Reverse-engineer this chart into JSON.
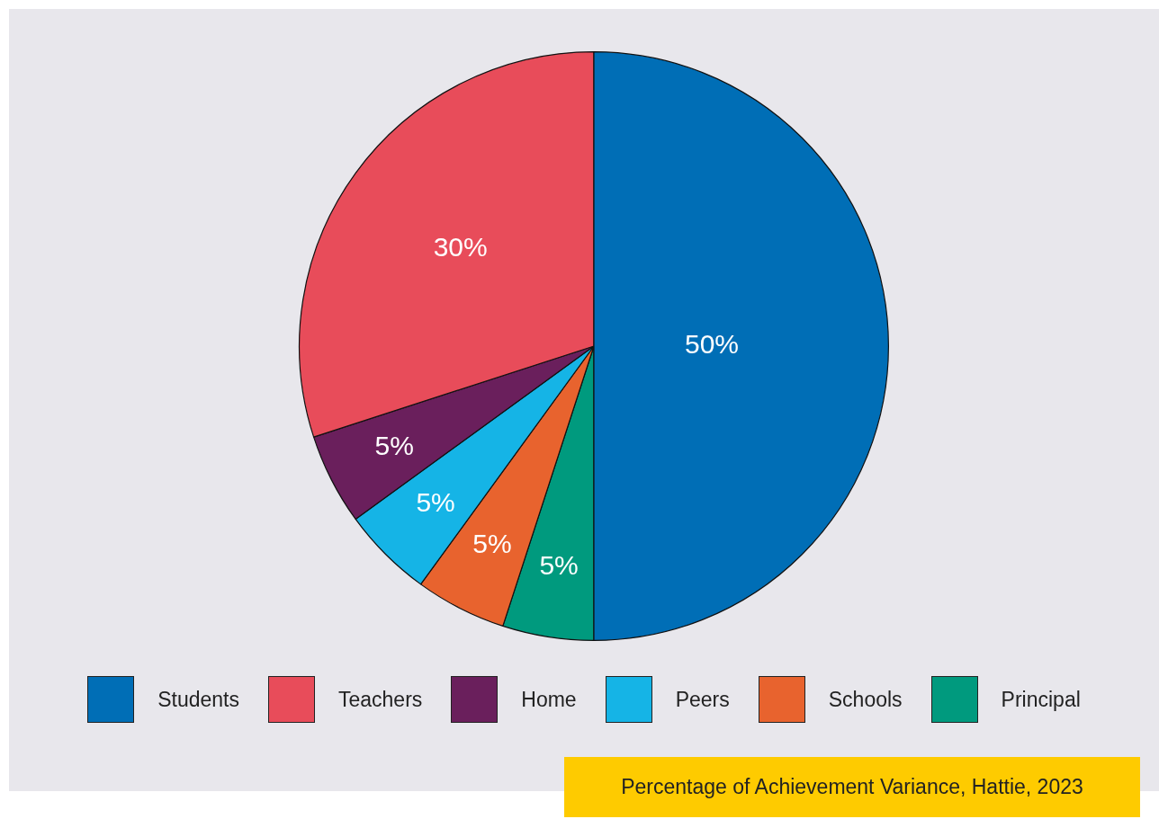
{
  "chart_data": {
    "type": "pie",
    "categories": [
      "Students",
      "Teachers",
      "Home",
      "Peers",
      "Schools",
      "Principal"
    ],
    "values": [
      50,
      30,
      5,
      5,
      5,
      5
    ],
    "colors": [
      "#006eb6",
      "#e84c5a",
      "#6a1f5c",
      "#15b4e6",
      "#e8632e",
      "#009a7e"
    ],
    "value_labels": [
      "50%",
      "30%",
      "5%",
      "5%",
      "5%",
      "5%"
    ],
    "legend": "bottom",
    "annotations": [
      "Percentage of Achievement Variance, Hattie, 2023"
    ]
  }
}
